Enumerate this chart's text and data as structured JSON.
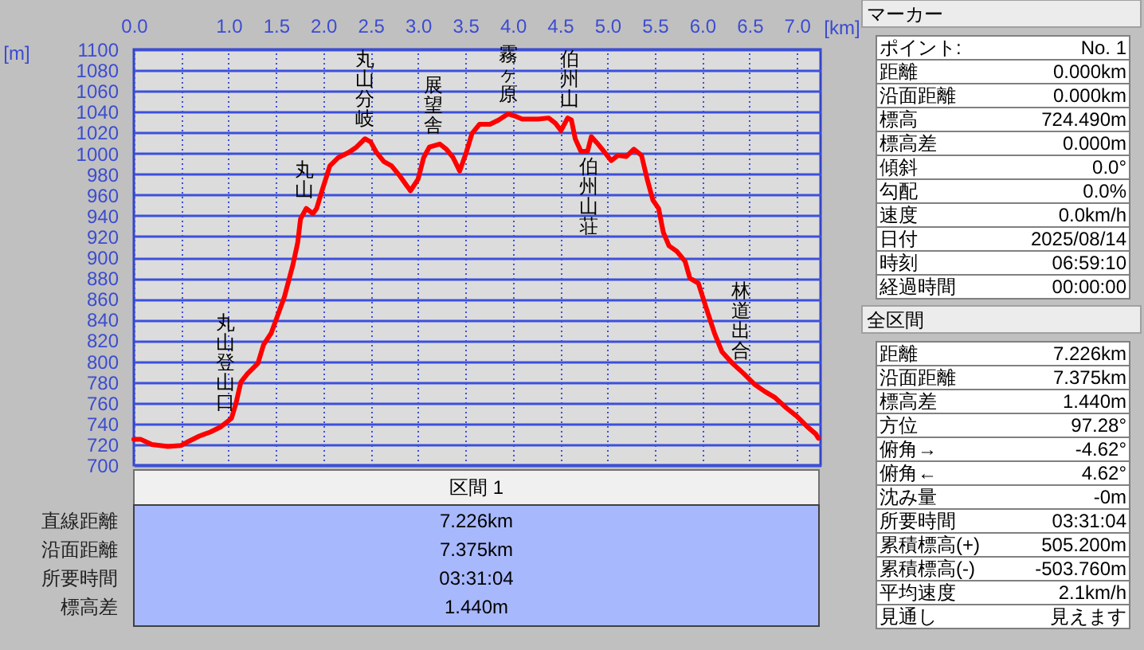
{
  "chart_data": [
    {
      "type": "line",
      "xlabel": "[km]",
      "ylabel": "[m]",
      "xlim": [
        0,
        7.25
      ],
      "xticks": [
        {
          "value": 0,
          "label": "0.0"
        },
        {
          "value": 0.5,
          "label": null
        },
        {
          "value": 1,
          "label": "1.0"
        },
        1.5,
        {
          "value": 2,
          "label": "2.0"
        },
        2.5,
        {
          "value": 3,
          "label": "3.0"
        },
        3.5,
        {
          "value": 4,
          "label": "4.0"
        },
        4.5,
        {
          "value": 5,
          "label": "5.0"
        },
        5.5,
        {
          "value": 6,
          "label": "6.0"
        },
        6.5,
        {
          "value": 7,
          "label": "7.0"
        }
      ],
      "ylim": [
        700,
        1100
      ],
      "yticks": [
        700,
        720,
        740,
        760,
        780,
        800,
        820,
        840,
        860,
        880,
        900,
        920,
        940,
        960,
        980,
        1000,
        1020,
        1040,
        1060,
        1080,
        1100
      ],
      "grid": true,
      "series": [
        {
          "color": "#ff0000",
          "x": [
            0,
            0.07,
            0.19,
            0.36,
            0.5,
            0.58,
            0.69,
            0.81,
            0.92,
            1.03,
            1.08,
            1.13,
            1.2,
            1.31,
            1.37,
            1.45,
            1.51,
            1.59,
            1.68,
            1.73,
            1.76,
            1.82,
            1.89,
            1.93,
            1.99,
            2.07,
            2.16,
            2.27,
            2.35,
            2.44,
            2.5,
            2.56,
            2.64,
            2.72,
            2.81,
            2.92,
            3.0,
            3.06,
            3.12,
            3.23,
            3.3,
            3.37,
            3.44,
            3.51,
            3.57,
            3.65,
            3.76,
            3.85,
            3.95,
            4.02,
            4.1,
            4.27,
            4.38,
            4.45,
            4.51,
            4.58,
            4.62,
            4.66,
            4.72,
            4.79,
            4.83,
            4.89,
            4.97,
            5.04,
            5.11,
            5.2,
            5.28,
            5.36,
            5.42,
            5.48,
            5.54,
            5.59,
            5.65,
            5.73,
            5.82,
            5.87,
            5.96,
            6.04,
            6.13,
            6.21,
            6.32,
            6.44,
            6.55,
            6.66,
            6.77,
            6.89,
            7.0,
            7.11,
            7.2,
            7.226
          ],
          "values": [
            725,
            725,
            720,
            718,
            719,
            723,
            728,
            732,
            737,
            745,
            760,
            780,
            788,
            798,
            816,
            827,
            842,
            862,
            893,
            914,
            937,
            947,
            942,
            947,
            965,
            988,
            996,
            1001,
            1006,
            1014,
            1011,
            1001,
            992,
            988,
            978,
            964,
            975,
            996,
            1006,
            1009,
            1004,
            996,
            983,
            1001,
            1019,
            1028,
            1028,
            1032,
            1038,
            1036,
            1033,
            1033,
            1034,
            1029,
            1022,
            1034,
            1032,
            1014,
            1002,
            1002,
            1016,
            1010,
            1001,
            993,
            998,
            997,
            1004,
            998,
            975,
            955,
            947,
            924,
            911,
            906,
            896,
            880,
            875,
            852,
            827,
            809,
            798,
            788,
            778,
            771,
            765,
            755,
            747,
            737,
            730,
            726
          ]
        }
      ],
      "annotations": [
        {
          "text": "丸山登山口",
          "x": 0.97,
          "y": 741
        },
        {
          "text": "丸山",
          "x": 1.8,
          "y": 946
        },
        {
          "text": "丸山分岐",
          "x": 2.44,
          "y": 1014
        },
        {
          "text": "展望舎",
          "x": 3.16,
          "y": 1008
        },
        {
          "text": "霧ヶ原",
          "x": 3.95,
          "y": 1038
        },
        {
          "text": "伯州山",
          "x": 4.6,
          "y": 1033
        },
        {
          "text": "伯州山荘",
          "x": 4.8,
          "y": 1003
        },
        {
          "text": "林道出合",
          "x": 6.41,
          "y": 791
        }
      ]
    },
    {
      "type": "other",
      "title": "区間 1",
      "annotations": [
        "直線距離",
        "7.226km",
        "沿面距離",
        "7.375km",
        "所要時間",
        "03:31:04",
        "標高差",
        "1.440m"
      ]
    },
    {
      "type": "other",
      "title": "マーカー",
      "annotations": [
        "ポイント:",
        "No. 1",
        "距離",
        "0.000km",
        "沿面距離",
        "0.000km",
        "標高",
        "724.490m",
        "標高差",
        "0.000m",
        "傾斜",
        "0.0°",
        "勾配",
        "0.0%",
        "速度",
        "0.0km/h",
        "日付",
        "2025/08/14",
        "時刻",
        "06:59:10",
        "経過時間",
        "00:00:00"
      ]
    },
    {
      "type": "other",
      "title": "全区間",
      "annotations": [
        "距離",
        "7.226km",
        "沿面距離",
        "7.375km",
        "標高差",
        "1.440m",
        "方位",
        "97.28°",
        "俯角→",
        "-4.62°",
        "俯角←",
        "4.62°",
        "沈み量",
        "-0m",
        "所要時間",
        "03:31:04",
        "累積標高(+)",
        "505.200m",
        "累積標高(-)",
        "-503.760m",
        "平均速度",
        "2.1km/h",
        "見通し",
        "見えます"
      ]
    }
  ]
}
